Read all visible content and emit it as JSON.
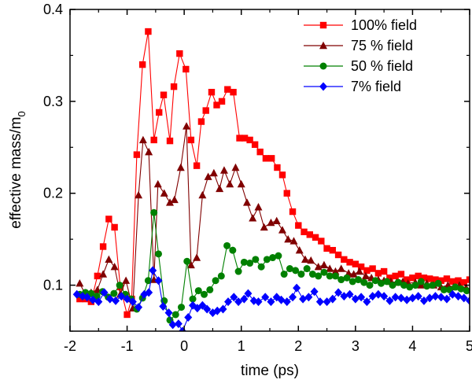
{
  "chart_data": {
    "type": "line",
    "xlabel": "time (ps)",
    "ylabel_main": "effective mass/m",
    "ylabel_sub": "0",
    "xlim": [
      -2,
      5
    ],
    "ylim": [
      0.05,
      0.4
    ],
    "xticks": [
      -2,
      -1,
      0,
      1,
      2,
      3,
      4,
      5
    ],
    "yticks": [
      0.1,
      0.2,
      0.3,
      0.4
    ],
    "xtick_labels": [
      "-2",
      "-1",
      "0",
      "1",
      "2",
      "3",
      "4",
      "5"
    ],
    "ytick_labels": [
      "0.1",
      "0.2",
      "0.3",
      "0.4"
    ],
    "legend_position": "top-right",
    "series": [
      {
        "name": "100% field",
        "color": "#ff0000",
        "marker": "square",
        "points": [
          [
            -1.83,
            0.085
          ],
          [
            -1.73,
            0.085
          ],
          [
            -1.63,
            0.082
          ],
          [
            -1.52,
            0.11
          ],
          [
            -1.42,
            0.142
          ],
          [
            -1.32,
            0.172
          ],
          [
            -1.22,
            0.163
          ],
          [
            -1.12,
            0.098
          ],
          [
            -1.0,
            0.068
          ],
          [
            -0.92,
            0.085
          ],
          [
            -0.83,
            0.242
          ],
          [
            -0.73,
            0.34
          ],
          [
            -0.63,
            0.376
          ],
          [
            -0.53,
            0.258
          ],
          [
            -0.44,
            0.288
          ],
          [
            -0.36,
            0.307
          ],
          [
            -0.25,
            0.257
          ],
          [
            -0.18,
            0.316
          ],
          [
            -0.08,
            0.352
          ],
          [
            0.03,
            0.335
          ],
          [
            0.12,
            0.258
          ],
          [
            0.22,
            0.23
          ],
          [
            0.3,
            0.278
          ],
          [
            0.38,
            0.29
          ],
          [
            0.48,
            0.31
          ],
          [
            0.57,
            0.296
          ],
          [
            0.66,
            0.3
          ],
          [
            0.76,
            0.313
          ],
          [
            0.86,
            0.31
          ],
          [
            0.97,
            0.26
          ],
          [
            1.06,
            0.26
          ],
          [
            1.15,
            0.258
          ],
          [
            1.24,
            0.253
          ],
          [
            1.33,
            0.245
          ],
          [
            1.43,
            0.238
          ],
          [
            1.53,
            0.238
          ],
          [
            1.63,
            0.228
          ],
          [
            1.72,
            0.22
          ],
          [
            1.8,
            0.2
          ],
          [
            1.9,
            0.18
          ],
          [
            2.0,
            0.165
          ],
          [
            2.1,
            0.158
          ],
          [
            2.2,
            0.155
          ],
          [
            2.3,
            0.152
          ],
          [
            2.4,
            0.148
          ],
          [
            2.5,
            0.14
          ],
          [
            2.6,
            0.138
          ],
          [
            2.7,
            0.133
          ],
          [
            2.8,
            0.128
          ],
          [
            2.9,
            0.125
          ],
          [
            3.0,
            0.123
          ],
          [
            3.1,
            0.12
          ],
          [
            3.2,
            0.116
          ],
          [
            3.3,
            0.118
          ],
          [
            3.4,
            0.113
          ],
          [
            3.5,
            0.115
          ],
          [
            3.6,
            0.108
          ],
          [
            3.7,
            0.11
          ],
          [
            3.8,
            0.112
          ],
          [
            3.9,
            0.106
          ],
          [
            4.0,
            0.108
          ],
          [
            4.1,
            0.11
          ],
          [
            4.2,
            0.108
          ],
          [
            4.3,
            0.107
          ],
          [
            4.4,
            0.106
          ],
          [
            4.5,
            0.105
          ],
          [
            4.6,
            0.107
          ],
          [
            4.7,
            0.104
          ],
          [
            4.8,
            0.105
          ],
          [
            4.9,
            0.103
          ],
          [
            5.0,
            0.106
          ]
        ]
      },
      {
        "name": "75 % field",
        "color": "#800000",
        "marker": "triangle",
        "points": [
          [
            -1.83,
            0.102
          ],
          [
            -1.73,
            0.09
          ],
          [
            -1.63,
            0.092
          ],
          [
            -1.52,
            0.095
          ],
          [
            -1.42,
            0.112
          ],
          [
            -1.32,
            0.128
          ],
          [
            -1.22,
            0.12
          ],
          [
            -1.12,
            0.09
          ],
          [
            -1.02,
            0.105
          ],
          [
            -0.9,
            0.075
          ],
          [
            -0.8,
            0.198
          ],
          [
            -0.72,
            0.258
          ],
          [
            -0.62,
            0.245
          ],
          [
            -0.53,
            0.106
          ],
          [
            -0.46,
            0.21
          ],
          [
            -0.35,
            0.2
          ],
          [
            -0.25,
            0.19
          ],
          [
            -0.17,
            0.193
          ],
          [
            -0.06,
            0.228
          ],
          [
            0.04,
            0.273
          ],
          [
            0.12,
            0.122
          ],
          [
            0.22,
            0.13
          ],
          [
            0.32,
            0.198
          ],
          [
            0.42,
            0.218
          ],
          [
            0.52,
            0.222
          ],
          [
            0.62,
            0.205
          ],
          [
            0.7,
            0.225
          ],
          [
            0.8,
            0.21
          ],
          [
            0.9,
            0.228
          ],
          [
            1.0,
            0.21
          ],
          [
            1.1,
            0.19
          ],
          [
            1.2,
            0.173
          ],
          [
            1.3,
            0.185
          ],
          [
            1.4,
            0.163
          ],
          [
            1.52,
            0.168
          ],
          [
            1.62,
            0.17
          ],
          [
            1.72,
            0.16
          ],
          [
            1.82,
            0.15
          ],
          [
            1.92,
            0.148
          ],
          [
            2.02,
            0.138
          ],
          [
            2.12,
            0.128
          ],
          [
            2.22,
            0.127
          ],
          [
            2.35,
            0.12
          ],
          [
            2.45,
            0.122
          ],
          [
            2.55,
            0.118
          ],
          [
            2.65,
            0.115
          ],
          [
            2.75,
            0.118
          ],
          [
            2.88,
            0.113
          ],
          [
            2.97,
            0.112
          ],
          [
            3.07,
            0.115
          ],
          [
            3.18,
            0.11
          ],
          [
            3.28,
            0.108
          ],
          [
            3.4,
            0.106
          ],
          [
            3.5,
            0.105
          ],
          [
            3.62,
            0.104
          ],
          [
            3.72,
            0.103
          ],
          [
            3.83,
            0.104
          ],
          [
            3.92,
            0.102
          ],
          [
            4.05,
            0.103
          ],
          [
            4.15,
            0.1
          ],
          [
            4.25,
            0.102
          ],
          [
            4.37,
            0.1
          ],
          [
            4.5,
            0.098
          ],
          [
            4.62,
            0.1
          ],
          [
            4.72,
            0.098
          ],
          [
            4.82,
            0.1
          ],
          [
            4.94,
            0.097
          ]
        ]
      },
      {
        "name": "50 % field",
        "color": "#008000",
        "marker": "circle",
        "points": [
          [
            -1.83,
            0.09
          ],
          [
            -1.73,
            0.092
          ],
          [
            -1.63,
            0.091
          ],
          [
            -1.53,
            0.088
          ],
          [
            -1.43,
            0.093
          ],
          [
            -1.33,
            0.087
          ],
          [
            -1.23,
            0.091
          ],
          [
            -1.13,
            0.1
          ],
          [
            -1.03,
            0.09
          ],
          [
            -0.93,
            0.085
          ],
          [
            -0.83,
            0.074
          ],
          [
            -0.73,
            0.086
          ],
          [
            -0.63,
            0.105
          ],
          [
            -0.53,
            0.179
          ],
          [
            -0.45,
            0.134
          ],
          [
            -0.35,
            0.083
          ],
          [
            -0.25,
            0.062
          ],
          [
            -0.15,
            0.068
          ],
          [
            -0.05,
            0.076
          ],
          [
            0.05,
            0.126
          ],
          [
            0.15,
            0.085
          ],
          [
            0.25,
            0.094
          ],
          [
            0.35,
            0.09
          ],
          [
            0.45,
            0.095
          ],
          [
            0.55,
            0.105
          ],
          [
            0.65,
            0.11
          ],
          [
            0.75,
            0.143
          ],
          [
            0.85,
            0.138
          ],
          [
            0.95,
            0.115
          ],
          [
            1.05,
            0.125
          ],
          [
            1.15,
            0.124
          ],
          [
            1.25,
            0.128
          ],
          [
            1.35,
            0.12
          ],
          [
            1.45,
            0.128
          ],
          [
            1.55,
            0.13
          ],
          [
            1.65,
            0.132
          ],
          [
            1.75,
            0.112
          ],
          [
            1.85,
            0.118
          ],
          [
            1.95,
            0.116
          ],
          [
            2.05,
            0.112
          ],
          [
            2.15,
            0.118
          ],
          [
            2.25,
            0.112
          ],
          [
            2.35,
            0.11
          ],
          [
            2.45,
            0.114
          ],
          [
            2.55,
            0.11
          ],
          [
            2.65,
            0.11
          ],
          [
            2.75,
            0.106
          ],
          [
            2.85,
            0.108
          ],
          [
            2.95,
            0.104
          ],
          [
            3.05,
            0.106
          ],
          [
            3.15,
            0.103
          ],
          [
            3.25,
            0.1
          ],
          [
            3.35,
            0.105
          ],
          [
            3.45,
            0.102
          ],
          [
            3.55,
            0.104
          ],
          [
            3.65,
            0.1
          ],
          [
            3.75,
            0.103
          ],
          [
            3.85,
            0.1
          ],
          [
            3.95,
            0.098
          ],
          [
            4.05,
            0.1
          ],
          [
            4.15,
            0.104
          ],
          [
            4.25,
            0.099
          ],
          [
            4.35,
            0.1
          ],
          [
            4.45,
            0.102
          ],
          [
            4.55,
            0.095
          ],
          [
            4.65,
            0.095
          ],
          [
            4.75,
            0.098
          ],
          [
            4.85,
            0.096
          ],
          [
            4.95,
            0.094
          ]
        ]
      },
      {
        "name": "7% field",
        "color": "#0000ff",
        "marker": "diamond",
        "points": [
          [
            -1.88,
            0.09
          ],
          [
            -1.78,
            0.088
          ],
          [
            -1.7,
            0.087
          ],
          [
            -1.6,
            0.084
          ],
          [
            -1.5,
            0.082
          ],
          [
            -1.4,
            0.092
          ],
          [
            -1.3,
            0.085
          ],
          [
            -1.2,
            0.083
          ],
          [
            -1.1,
            0.088
          ],
          [
            -1.0,
            0.085
          ],
          [
            -0.9,
            0.082
          ],
          [
            -0.8,
            0.076
          ],
          [
            -0.7,
            0.09
          ],
          [
            -0.62,
            0.092
          ],
          [
            -0.55,
            0.116
          ],
          [
            -0.45,
            0.105
          ],
          [
            -0.37,
            0.077
          ],
          [
            -0.27,
            0.07
          ],
          [
            -0.2,
            0.057
          ],
          [
            -0.1,
            0.058
          ],
          [
            -0.03,
            0.05
          ],
          [
            0.07,
            0.065
          ],
          [
            0.15,
            0.078
          ],
          [
            0.23,
            0.075
          ],
          [
            0.32,
            0.078
          ],
          [
            0.4,
            0.074
          ],
          [
            0.5,
            0.07
          ],
          [
            0.58,
            0.072
          ],
          [
            0.68,
            0.074
          ],
          [
            0.77,
            0.082
          ],
          [
            0.87,
            0.087
          ],
          [
            0.95,
            0.082
          ],
          [
            1.05,
            0.085
          ],
          [
            1.12,
            0.091
          ],
          [
            1.22,
            0.083
          ],
          [
            1.3,
            0.082
          ],
          [
            1.42,
            0.087
          ],
          [
            1.52,
            0.082
          ],
          [
            1.62,
            0.087
          ],
          [
            1.7,
            0.084
          ],
          [
            1.8,
            0.082
          ],
          [
            1.9,
            0.087
          ],
          [
            1.97,
            0.097
          ],
          [
            2.08,
            0.085
          ],
          [
            2.18,
            0.087
          ],
          [
            2.28,
            0.093
          ],
          [
            2.38,
            0.082
          ],
          [
            2.5,
            0.082
          ],
          [
            2.6,
            0.085
          ],
          [
            2.7,
            0.092
          ],
          [
            2.8,
            0.088
          ],
          [
            2.9,
            0.09
          ],
          [
            3.0,
            0.085
          ],
          [
            3.1,
            0.087
          ],
          [
            3.2,
            0.082
          ],
          [
            3.3,
            0.088
          ],
          [
            3.4,
            0.09
          ],
          [
            3.5,
            0.088
          ],
          [
            3.6,
            0.083
          ],
          [
            3.7,
            0.087
          ],
          [
            3.8,
            0.086
          ],
          [
            3.9,
            0.084
          ],
          [
            4.0,
            0.086
          ],
          [
            4.1,
            0.088
          ],
          [
            4.2,
            0.083
          ],
          [
            4.3,
            0.086
          ],
          [
            4.4,
            0.088
          ],
          [
            4.5,
            0.087
          ],
          [
            4.6,
            0.085
          ],
          [
            4.7,
            0.09
          ],
          [
            4.8,
            0.088
          ],
          [
            4.9,
            0.086
          ],
          [
            5.0,
            0.083
          ]
        ]
      }
    ]
  }
}
